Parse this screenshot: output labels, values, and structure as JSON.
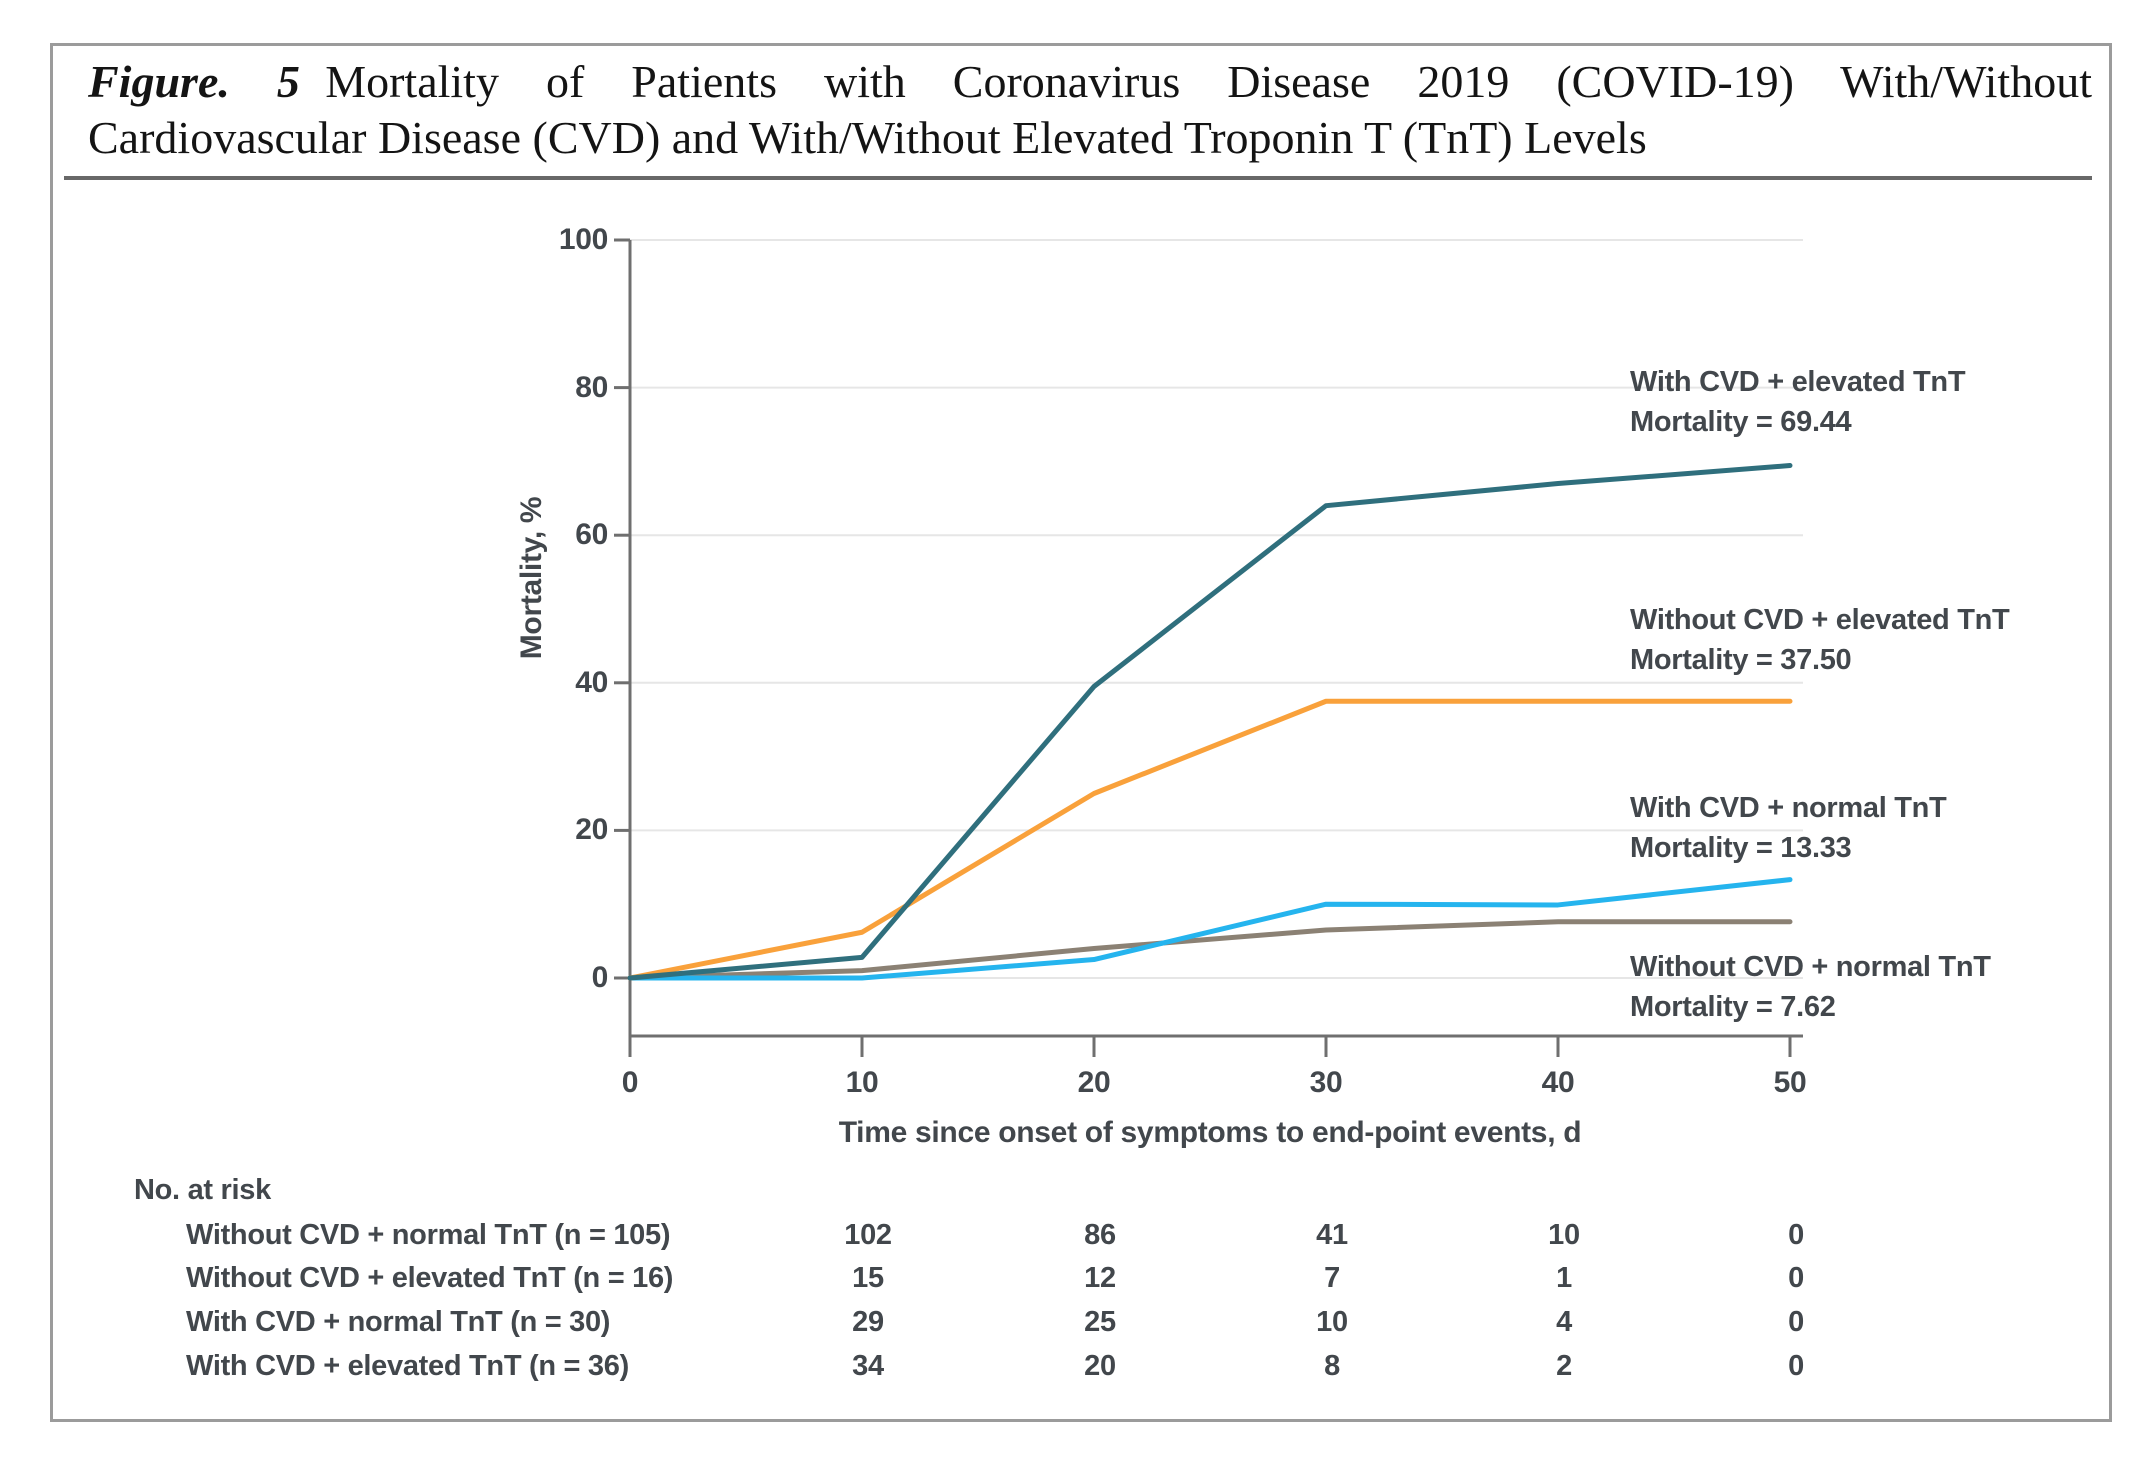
{
  "colors": {
    "grid": "#e6e6e6",
    "axis": "#6f6f6f",
    "chart_text": "#42474c",
    "box_border": "#9b9b9b",
    "teal": "#2f6f7d",
    "orange": "#f9a13b",
    "cyan": "#25b4ee",
    "taupe": "#8b8174"
  },
  "figure": {
    "figure_label": "Figure. 5",
    "title_line1_rest": "Mortality of Patients with Coronavirus Disease 2019 (COVID-19) With/Without",
    "title_line2": "Cardiovascular Disease (CVD) and With/Without Elevated Troponin T (TnT) Levels"
  },
  "chart_data": {
    "type": "line",
    "title": "",
    "xlabel": "Time since onset of symptoms to end-point events, d",
    "ylabel": "Mortality, %",
    "xlim": [
      0,
      50
    ],
    "ylim": [
      0,
      100
    ],
    "x_ticks": [
      "0",
      "10",
      "20",
      "30",
      "40",
      "50"
    ],
    "y_ticks": [
      "0",
      "20",
      "40",
      "60",
      "80",
      "100"
    ],
    "grid": "horizontal-light",
    "legend_position": "right-annotations",
    "x": [
      0,
      10,
      20,
      30,
      40,
      50
    ],
    "series": [
      {
        "name": "Without CVD + normal TnT",
        "color": "#8b8174",
        "values": [
          0,
          1.0,
          4.0,
          6.5,
          7.62,
          7.62
        ],
        "final_mortality": 7.62
      },
      {
        "name": "With CVD + normal TnT",
        "color": "#25b4ee",
        "values": [
          0,
          0,
          2.5,
          10,
          9.9,
          13.33
        ],
        "final_mortality": 13.33
      },
      {
        "name": "Without CVD + elevated TnT",
        "color": "#f9a13b",
        "values": [
          0,
          6.2,
          25,
          37.5,
          37.5,
          37.5
        ],
        "final_mortality": 37.5
      },
      {
        "name": "With CVD + elevated TnT",
        "color": "#2f6f7d",
        "values": [
          0,
          2.8,
          39.5,
          64,
          67,
          69.44
        ],
        "final_mortality": 69.44
      }
    ],
    "annotations": [
      {
        "lines": [
          "With CVD + elevated TnT",
          "Mortality = 69.44"
        ]
      },
      {
        "lines": [
          "Without CVD + elevated TnT",
          "Mortality = 37.50"
        ]
      },
      {
        "lines": [
          "With CVD + normal TnT",
          "Mortality = 13.33"
        ]
      },
      {
        "lines": [
          "Without CVD + normal TnT",
          "Mortality = 7.62"
        ]
      }
    ]
  },
  "risk_table": {
    "header": "No. at risk",
    "time_points": [
      10,
      20,
      30,
      40,
      50
    ],
    "rows": [
      {
        "label": "Without CVD + normal TnT (n = 105)",
        "values": [
          "102",
          "86",
          "41",
          "10",
          "0"
        ]
      },
      {
        "label": "Without CVD + elevated TnT (n = 16)",
        "values": [
          "15",
          "12",
          "7",
          "1",
          "0"
        ]
      },
      {
        "label": "With CVD + normal TnT (n = 30)",
        "values": [
          "29",
          "25",
          "10",
          "4",
          "0"
        ]
      },
      {
        "label": "With CVD + elevated TnT (n = 36)",
        "values": [
          "34",
          "20",
          "8",
          "2",
          "0"
        ]
      }
    ]
  }
}
